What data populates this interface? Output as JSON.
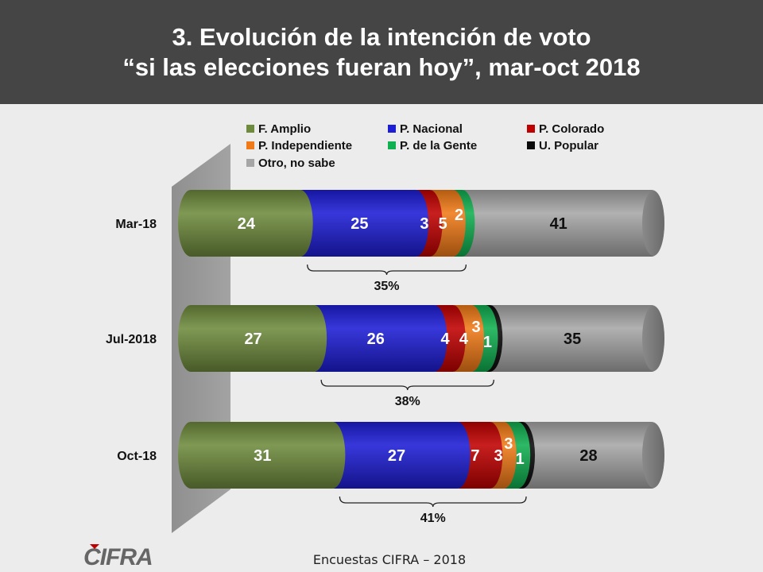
{
  "header": {
    "title_line1": "3. Evolución de la intención de voto",
    "title_line2": "“si las elecciones fueran hoy”, mar-oct 2018"
  },
  "footer": {
    "source": "Encuestas CIFRA – 2018"
  },
  "logo": {
    "text": "CIFRA",
    "icon": "cifra-logo"
  },
  "colors": {
    "F. Amplio": "#6e8b3d",
    "P. Nacional": "#1d1dd6",
    "P. Colorado": "#c00000",
    "P. Independiente": "#f07a17",
    "P. de la Gente": "#10b050",
    "U. Popular": "#0a0a0a",
    "Otro, no sabe": "#a6a6a6"
  },
  "chart_data": {
    "type": "bar",
    "orientation": "horizontal",
    "stacked": true,
    "categories": [
      "Mar-18",
      "Jul-2018",
      "Oct-18"
    ],
    "series": [
      {
        "name": "F. Amplio",
        "values": [
          24,
          27,
          31
        ]
      },
      {
        "name": "P. Nacional",
        "values": [
          25,
          26,
          27
        ]
      },
      {
        "name": "P. Colorado",
        "values": [
          3,
          4,
          7
        ]
      },
      {
        "name": "P. Independiente",
        "values": [
          5,
          4,
          3
        ]
      },
      {
        "name": "P. de la Gente",
        "values": [
          2,
          3,
          3
        ]
      },
      {
        "name": "U. Popular",
        "values": [
          0,
          1,
          1
        ]
      },
      {
        "name": "Otro, no sabe",
        "values": [
          41,
          35,
          28
        ]
      }
    ],
    "data_labels": [
      [
        "24",
        "25",
        "3",
        "5",
        "2",
        "",
        "41"
      ],
      [
        "27",
        "26",
        "4",
        "4",
        "3",
        "1",
        "35"
      ],
      [
        "31",
        "27",
        "7",
        "3",
        "3",
        "1",
        "28"
      ]
    ],
    "brackets": [
      {
        "from_series": "P. Nacional",
        "to_series": "P. de la Gente",
        "label": "35%"
      },
      {
        "from_series": "P. Nacional",
        "to_series": "U. Popular",
        "label": "38%"
      },
      {
        "from_series": "P. Nacional",
        "to_series": "U. Popular",
        "label": "41%"
      }
    ],
    "legend": {
      "placement": "top",
      "entries": [
        "F. Amplio",
        "P. Nacional",
        "P. Colorado",
        "P. Independiente",
        "P. de la Gente",
        "U. Popular",
        "Otro, no sabe"
      ]
    },
    "title": "",
    "xlabel": "",
    "ylabel": ""
  }
}
